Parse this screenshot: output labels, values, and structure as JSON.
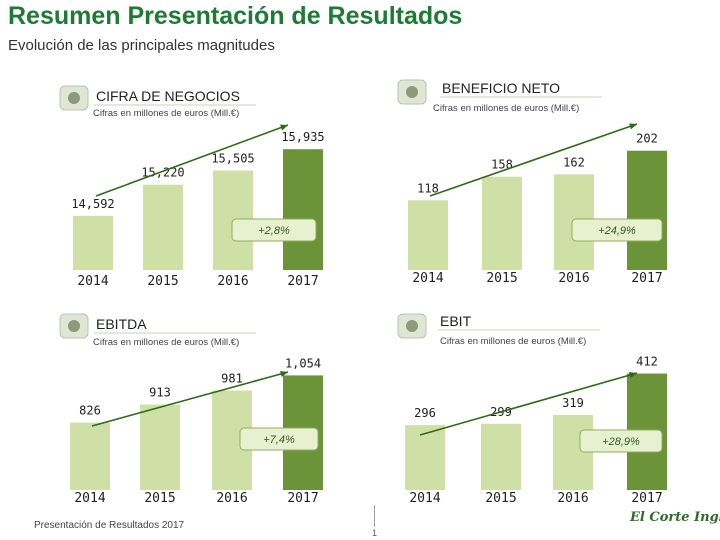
{
  "page": {
    "title": "Resumen Presentación de Resultados",
    "subtitle": "Evolución de las principales magnitudes",
    "footer": "Presentación de Resultados 2017",
    "page_number": "1",
    "logo_text": "El Corte Inglés"
  },
  "colors": {
    "title": "#1e7a34",
    "bar_light": "#cfe0a6",
    "bar_dark": "#6b9337",
    "growth_box": "#e7f0d0",
    "growth_border": "#8fb05a"
  },
  "chart_data": [
    {
      "type": "bar",
      "title": "CIFRA DE NEGOCIOS",
      "ylabel": "Cifras en millones de euros (Mill.€)",
      "categories": [
        "2014",
        "2015",
        "2016",
        "2017"
      ],
      "values": [
        14592,
        15220,
        15505,
        15935
      ],
      "labels": [
        "14,592",
        "15,220",
        "15,505",
        "15,935"
      ],
      "growth": "+2,8%",
      "ylim": [
        13500,
        16000
      ]
    },
    {
      "type": "bar",
      "title": "BENEFICIO NETO",
      "ylabel": "Cifras en millones de euros (Mill.€)",
      "categories": [
        "2014",
        "2015",
        "2016",
        "2017"
      ],
      "values": [
        118,
        158,
        162,
        202
      ],
      "labels": [
        "118",
        "158",
        "162",
        "202"
      ],
      "growth": "+24,9%",
      "ylim": [
        0,
        210
      ]
    },
    {
      "type": "bar",
      "title": "EBITDA",
      "ylabel": "Cifras en millones de euros (Mill.€)",
      "categories": [
        "2014",
        "2015",
        "2016",
        "2017"
      ],
      "values": [
        826,
        913,
        981,
        1054
      ],
      "labels": [
        "826",
        "913",
        "981",
        "1,054"
      ],
      "growth": "+7,4%",
      "ylim": [
        500,
        1080
      ]
    },
    {
      "type": "bar",
      "title": "EBIT",
      "ylabel": "Cifras en millones de euros (Mill.€)",
      "categories": [
        "2014",
        "2015",
        "2016",
        "2017"
      ],
      "values": [
        296,
        299,
        319,
        412
      ],
      "labels": [
        "296",
        "299",
        "319",
        "412"
      ],
      "growth": "+28,9%",
      "ylim": [
        150,
        420
      ]
    }
  ]
}
